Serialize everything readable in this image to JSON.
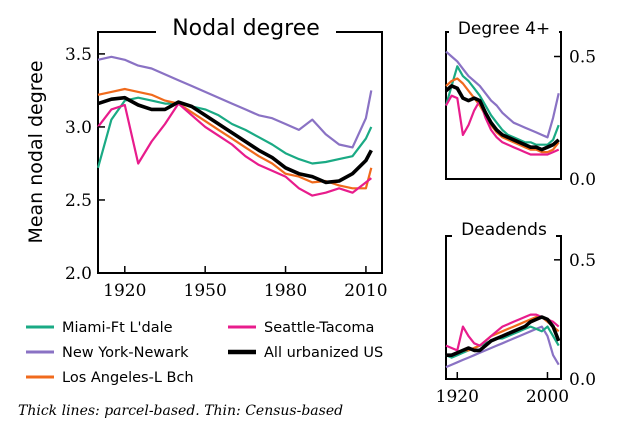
{
  "caption": "Thick lines: parcel-based. Thin: Census-based",
  "colors": {
    "miami": "#1aaa84",
    "newyork": "#8a72c4",
    "losangeles": "#f06a1c",
    "seattle": "#e81c8c",
    "allus": "#000000"
  },
  "chart_data": [
    {
      "type": "line",
      "title": "Nodal degree",
      "ylabel": "Mean nodal degree",
      "xlim": [
        1910,
        2016
      ],
      "ylim": [
        2.0,
        3.65
      ],
      "xticks": [
        "1920",
        "1950",
        "1980",
        "2010"
      ],
      "yticks": [
        "2.0",
        "2.5",
        "3.0",
        "3.5"
      ],
      "x": [
        1910,
        1915,
        1920,
        1925,
        1930,
        1935,
        1940,
        1945,
        1950,
        1955,
        1960,
        1965,
        1970,
        1975,
        1980,
        1985,
        1990,
        1995,
        2000,
        2005,
        2010,
        2012
      ],
      "series": [
        {
          "name": "Miami-Ft L'dale",
          "key": "miami",
          "values": [
            2.72,
            3.05,
            3.18,
            3.2,
            3.18,
            3.16,
            3.16,
            3.14,
            3.12,
            3.08,
            3.02,
            2.98,
            2.93,
            2.88,
            2.82,
            2.78,
            2.75,
            2.76,
            2.78,
            2.8,
            2.92,
            3.0
          ]
        },
        {
          "name": "New York-Newark",
          "key": "newyork",
          "values": [
            3.46,
            3.48,
            3.46,
            3.42,
            3.4,
            3.36,
            3.32,
            3.28,
            3.24,
            3.2,
            3.16,
            3.12,
            3.08,
            3.06,
            3.02,
            2.98,
            3.05,
            2.95,
            2.88,
            2.86,
            3.06,
            3.25
          ]
        },
        {
          "name": "Los Angeles-L Bch",
          "key": "losangeles",
          "values": [
            3.22,
            3.24,
            3.26,
            3.24,
            3.22,
            3.18,
            3.16,
            3.1,
            3.04,
            2.98,
            2.92,
            2.86,
            2.8,
            2.75,
            2.68,
            2.66,
            2.62,
            2.63,
            2.6,
            2.58,
            2.58,
            2.72
          ]
        },
        {
          "name": "Seattle-Tacoma",
          "key": "seattle",
          "values": [
            3.0,
            3.12,
            3.15,
            2.75,
            2.9,
            3.02,
            3.16,
            3.08,
            3.0,
            2.94,
            2.88,
            2.8,
            2.74,
            2.7,
            2.66,
            2.58,
            2.53,
            2.55,
            2.58,
            2.55,
            2.62,
            2.65
          ]
        },
        {
          "name": "All urbanized US",
          "key": "allus",
          "values": [
            3.16,
            3.19,
            3.2,
            3.15,
            3.12,
            3.12,
            3.17,
            3.14,
            3.08,
            3.02,
            2.96,
            2.9,
            2.84,
            2.79,
            2.72,
            2.68,
            2.66,
            2.62,
            2.63,
            2.68,
            2.77,
            2.84
          ]
        }
      ]
    },
    {
      "type": "line",
      "title": "Degree 4+",
      "xlim": [
        1910,
        2012
      ],
      "ylim": [
        0.0,
        0.6
      ],
      "xticks": [],
      "yticks": [
        "0.0",
        "0.5"
      ],
      "x": [
        1910,
        1915,
        1920,
        1925,
        1930,
        1935,
        1940,
        1945,
        1950,
        1955,
        1960,
        1965,
        1970,
        1975,
        1980,
        1985,
        1990,
        1995,
        2000,
        2005,
        2010
      ],
      "series": [
        {
          "name": "Miami-Ft L'dale",
          "key": "miami",
          "values": [
            0.3,
            0.38,
            0.46,
            0.42,
            0.4,
            0.37,
            0.34,
            0.3,
            0.26,
            0.23,
            0.2,
            0.18,
            0.17,
            0.16,
            0.15,
            0.15,
            0.14,
            0.14,
            0.14,
            0.16,
            0.22
          ]
        },
        {
          "name": "New York-Newark",
          "key": "newyork",
          "values": [
            0.52,
            0.5,
            0.48,
            0.45,
            0.42,
            0.4,
            0.38,
            0.35,
            0.32,
            0.3,
            0.27,
            0.25,
            0.23,
            0.22,
            0.21,
            0.2,
            0.19,
            0.18,
            0.17,
            0.25,
            0.35
          ]
        },
        {
          "name": "Los Angeles-L Bch",
          "key": "losangeles",
          "values": [
            0.38,
            0.4,
            0.41,
            0.39,
            0.36,
            0.33,
            0.3,
            0.26,
            0.22,
            0.19,
            0.17,
            0.16,
            0.15,
            0.14,
            0.13,
            0.12,
            0.12,
            0.11,
            0.11,
            0.12,
            0.15
          ]
        },
        {
          "name": "Seattle-Tacoma",
          "key": "seattle",
          "values": [
            0.3,
            0.34,
            0.33,
            0.18,
            0.22,
            0.28,
            0.32,
            0.25,
            0.2,
            0.17,
            0.15,
            0.14,
            0.13,
            0.12,
            0.11,
            0.1,
            0.1,
            0.1,
            0.1,
            0.11,
            0.12
          ]
        },
        {
          "name": "All urbanized US",
          "key": "allus",
          "values": [
            0.36,
            0.38,
            0.37,
            0.33,
            0.32,
            0.33,
            0.32,
            0.27,
            0.23,
            0.2,
            0.18,
            0.17,
            0.16,
            0.15,
            0.14,
            0.13,
            0.13,
            0.12,
            0.13,
            0.14,
            0.16
          ]
        }
      ]
    },
    {
      "type": "line",
      "title": "Deadends",
      "xlim": [
        1910,
        2012
      ],
      "ylim": [
        0.0,
        0.6
      ],
      "xticks": [
        "1920",
        "2000"
      ],
      "yticks": [
        "0.0",
        "0.5"
      ],
      "x": [
        1910,
        1915,
        1920,
        1925,
        1930,
        1935,
        1940,
        1945,
        1950,
        1955,
        1960,
        1965,
        1970,
        1975,
        1980,
        1985,
        1990,
        1995,
        2000,
        2005,
        2010
      ],
      "series": [
        {
          "name": "Miami-Ft L'dale",
          "key": "miami",
          "values": [
            0.1,
            0.09,
            0.1,
            0.11,
            0.12,
            0.13,
            0.14,
            0.15,
            0.16,
            0.17,
            0.17,
            0.18,
            0.19,
            0.2,
            0.21,
            0.22,
            0.21,
            0.2,
            0.22,
            0.18,
            0.14
          ]
        },
        {
          "name": "New York-Newark",
          "key": "newyork",
          "values": [
            0.05,
            0.06,
            0.07,
            0.08,
            0.09,
            0.1,
            0.11,
            0.12,
            0.13,
            0.14,
            0.15,
            0.16,
            0.17,
            0.18,
            0.19,
            0.2,
            0.21,
            0.22,
            0.18,
            0.1,
            0.06
          ]
        },
        {
          "name": "Los Angeles-L Bch",
          "key": "losangeles",
          "values": [
            0.1,
            0.1,
            0.11,
            0.12,
            0.12,
            0.13,
            0.14,
            0.16,
            0.18,
            0.19,
            0.2,
            0.21,
            0.22,
            0.23,
            0.24,
            0.25,
            0.26,
            0.26,
            0.24,
            0.22,
            0.2
          ]
        },
        {
          "name": "Seattle-Tacoma",
          "key": "seattle",
          "values": [
            0.14,
            0.13,
            0.12,
            0.22,
            0.18,
            0.15,
            0.14,
            0.16,
            0.18,
            0.2,
            0.22,
            0.23,
            0.24,
            0.25,
            0.26,
            0.27,
            0.27,
            0.26,
            0.25,
            0.24,
            0.22
          ]
        },
        {
          "name": "All urbanized US",
          "key": "allus",
          "values": [
            0.1,
            0.1,
            0.11,
            0.12,
            0.13,
            0.12,
            0.12,
            0.14,
            0.16,
            0.17,
            0.18,
            0.19,
            0.2,
            0.21,
            0.22,
            0.24,
            0.25,
            0.26,
            0.25,
            0.22,
            0.16
          ]
        }
      ]
    }
  ]
}
